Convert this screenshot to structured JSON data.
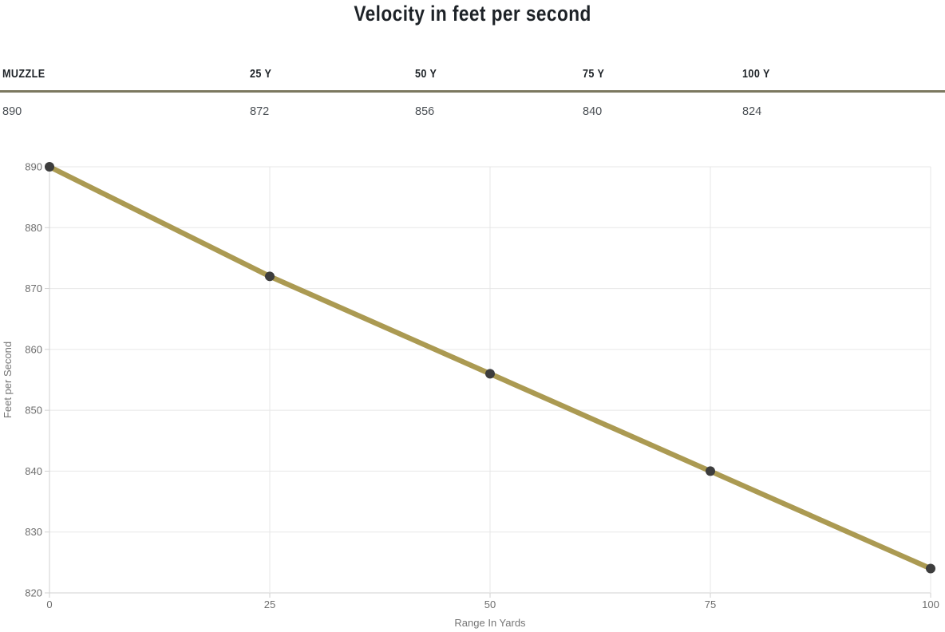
{
  "title": "Velocity in feet per second",
  "table": {
    "columns": [
      {
        "label": "MUZZLE",
        "value": "890"
      },
      {
        "label": "25 Y",
        "value": "872"
      },
      {
        "label": "50 Y",
        "value": "856"
      },
      {
        "label": "75 Y",
        "value": "840"
      },
      {
        "label": "100 Y",
        "value": "824"
      }
    ]
  },
  "chart_data": {
    "type": "line",
    "x": [
      0,
      25,
      50,
      75,
      100
    ],
    "series": [
      {
        "name": "Velocity",
        "values": [
          890,
          872,
          856,
          840,
          824
        ]
      }
    ],
    "title": "Velocity in feet per second",
    "xlabel": "Range In Yards",
    "ylabel": "Feet per Second",
    "xlim": [
      0,
      100
    ],
    "ylim": [
      820,
      890
    ],
    "xticks": [
      0,
      25,
      50,
      75,
      100
    ],
    "yticks": [
      820,
      830,
      840,
      850,
      860,
      870,
      880,
      890
    ],
    "grid": true,
    "legend": "none",
    "line_color": "#ab9a52",
    "point_color": "#3d3d3d"
  },
  "colors": {
    "gridline": "#e7e7e7",
    "axis_line": "#d2d2d2",
    "tick_text": "#6e6e6e",
    "axis_title_text": "#757575"
  }
}
